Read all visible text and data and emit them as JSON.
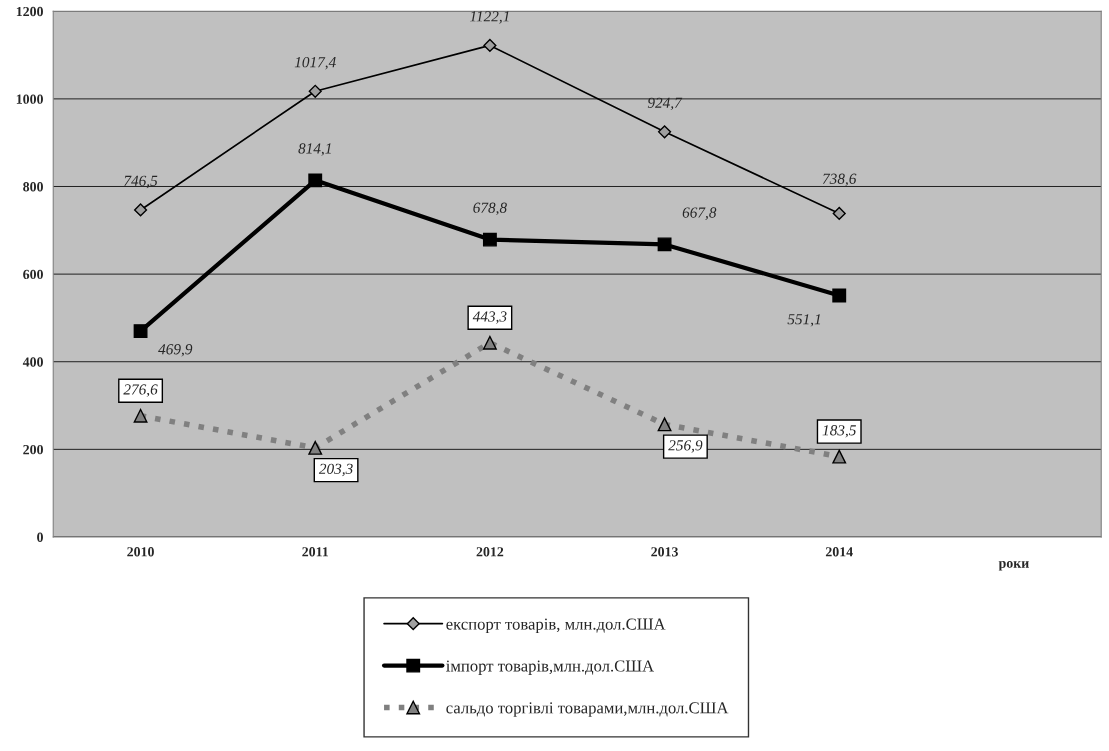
{
  "chart_data": {
    "type": "line",
    "categories": [
      "2010",
      "2011",
      "2012",
      "2013",
      "2014"
    ],
    "annotations": [
      "роки"
    ],
    "series": [
      {
        "name": "експорт товарів, млн.дол.США",
        "color": "#000000",
        "values": [
          746.5,
          1017.4,
          1122.1,
          924.7,
          738.6
        ],
        "value_labels": [
          "746,5",
          "1017,4",
          "1122,1",
          "924,7",
          "738,6"
        ],
        "marker": "diamond",
        "line_style": "solid"
      },
      {
        "name": "імпорт товарів,млн.дол.США",
        "color": "#000000",
        "values": [
          469.9,
          814.1,
          678.8,
          667.8,
          551.1
        ],
        "value_labels": [
          "469,9",
          "814,1",
          "678,8",
          "667,8",
          "551,1"
        ],
        "marker": "square",
        "line_style": "solid"
      },
      {
        "name": "сальдо торгівлі товарами,млн.дол.США",
        "color": "#808080",
        "values": [
          276.6,
          203.3,
          443.3,
          256.9,
          183.5
        ],
        "value_labels": [
          "276,6",
          "203,3",
          "443,3",
          "256,9",
          "183,5"
        ],
        "marker": "triangle",
        "line_style": "dotted"
      }
    ],
    "ylim": [
      0,
      1200
    ],
    "yticks": [
      0,
      200,
      400,
      600,
      800,
      1000,
      1200
    ],
    "grid": "y",
    "legend": "bottom"
  }
}
